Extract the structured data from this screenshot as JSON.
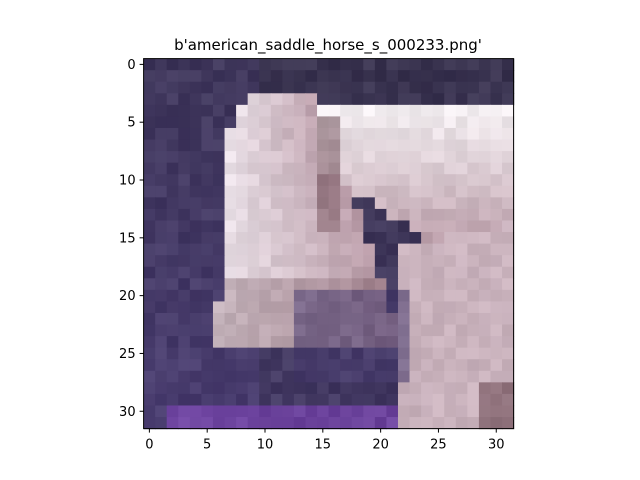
{
  "figure": {
    "title": "b'american_saddle_horse_s_000233.png'"
  },
  "image": {
    "grid_size": 32,
    "description_colors": {
      "background_dark": "#3a3450",
      "purple_bg": "#4b3e72",
      "horse_light": "#e9dfe6",
      "horse_mid": "#b89aa6",
      "horse_shadow": "#6d4b55",
      "bright_purple": "#7a47b0",
      "neck_white": "#f3eef1"
    }
  },
  "axes": {
    "x_ticks": [
      "0",
      "5",
      "10",
      "15",
      "20",
      "25",
      "30"
    ],
    "y_ticks": [
      "0",
      "5",
      "10",
      "15",
      "20",
      "25",
      "30"
    ]
  }
}
